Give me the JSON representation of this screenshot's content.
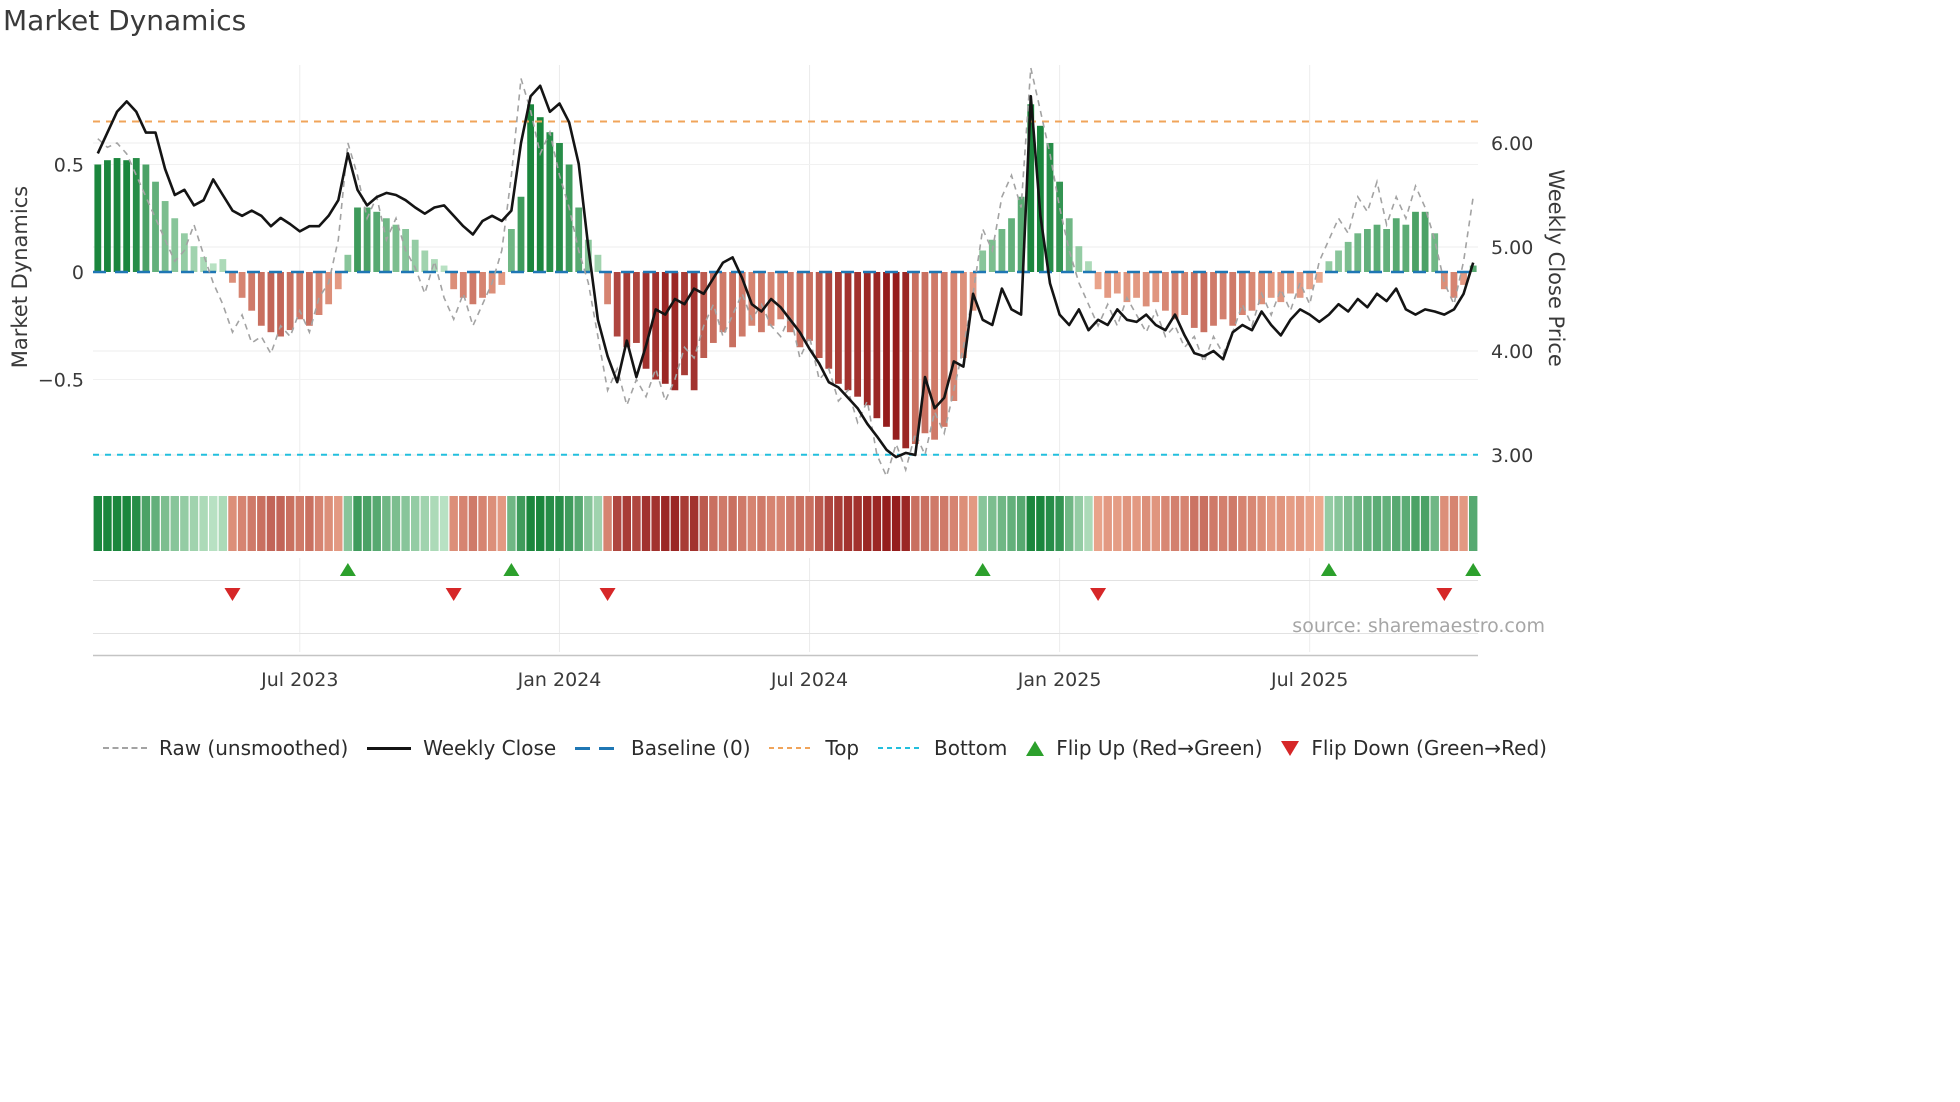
{
  "title": "Market Dynamics",
  "source": "source: sharemaestro.com",
  "axes": {
    "left_label": "Market Dynamics",
    "right_label": "Weekly Close Price",
    "left_ticks": [
      {
        "v": 0.5,
        "label": "0.5"
      },
      {
        "v": 0,
        "label": "0"
      },
      {
        "v": -0.5,
        "label": "−0.5"
      }
    ],
    "right_ticks": [
      {
        "v": 6,
        "label": "6.00"
      },
      {
        "v": 5,
        "label": "5.00"
      },
      {
        "v": 4,
        "label": "4.00"
      },
      {
        "v": 3,
        "label": "3.00"
      }
    ],
    "x_ticks": [
      {
        "i": 21,
        "label": "Jul 2023"
      },
      {
        "i": 48,
        "label": "Jan 2024"
      },
      {
        "i": 74,
        "label": "Jul 2024"
      },
      {
        "i": 100,
        "label": "Jan 2025"
      },
      {
        "i": 126,
        "label": "Jul 2025"
      }
    ]
  },
  "palette": {
    "green_dark": "#0f7f33",
    "green_light": "#c4e8cd",
    "red_dark": "#951d1d",
    "red_light": "#f6b89b",
    "raw_line": "#a3a3a3",
    "close_line": "#141414",
    "baseline": "#1f77b4",
    "top_line": "#f0a45a",
    "bottom_line": "#22bfdd",
    "flip_up": "#2ca02c",
    "flip_down": "#d62728",
    "grid": "#ececec",
    "spine": "#c4c4c4",
    "text": "#3a3a3a"
  },
  "legend": [
    {
      "id": "raw",
      "label": "Raw (unsmoothed)",
      "swatch": "dash",
      "color": "#a3a3a3"
    },
    {
      "id": "weekly-close",
      "label": "Weekly Close",
      "swatch": "solid",
      "color": "#141414"
    },
    {
      "id": "baseline",
      "label": "Baseline (0)",
      "swatch": "longdash",
      "color": "#1f77b4"
    },
    {
      "id": "top",
      "label": "Top",
      "swatch": "dots",
      "color": "#f0a45a"
    },
    {
      "id": "bottom",
      "label": "Bottom",
      "swatch": "dots",
      "color": "#22bfdd"
    },
    {
      "id": "flip-up",
      "label": "Flip Up (Red→Green)",
      "swatch": "tri-up",
      "color": "#2ca02c"
    },
    {
      "id": "flip-down",
      "label": "Flip Down (Green→Red)",
      "swatch": "tri-down",
      "color": "#d62728"
    }
  ],
  "chart_data": {
    "type": "combo",
    "x": {
      "freq": "weekly",
      "n": 144,
      "tick_indices": [
        21,
        48,
        74,
        100,
        126
      ],
      "tick_labels": [
        "Jul 2023",
        "Jan 2024",
        "Jul 2024",
        "Jan 2025",
        "Jul 2025"
      ]
    },
    "axes": {
      "left": {
        "label": "Market Dynamics",
        "ticks": [
          0.5,
          0,
          -0.5
        ],
        "lim": [
          -0.96,
          0.96
        ]
      },
      "right": {
        "label": "Weekly Close Price",
        "ticks": [
          6.0,
          5.0,
          4.0,
          3.0
        ],
        "lim": [
          3.0,
          6.75
        ]
      }
    },
    "reference_lines": [
      {
        "name": "Baseline (0)",
        "axis": "left",
        "value": 0
      },
      {
        "name": "Top",
        "axis": "left",
        "value": 0.7
      },
      {
        "name": "Bottom",
        "axis": "left",
        "value": -0.85
      }
    ],
    "flip_up_indices": [
      26,
      43,
      92,
      128,
      143
    ],
    "flip_down_indices": [
      14,
      37,
      53,
      104,
      140
    ],
    "heatmap": "strip mirrors bar sign and intensity per week",
    "series": [
      {
        "name": "Market Dynamics",
        "type": "bar",
        "axis": "left",
        "values": [
          0.5,
          0.52,
          0.53,
          0.52,
          0.53,
          0.5,
          0.42,
          0.33,
          0.25,
          0.18,
          0.12,
          0.07,
          0.04,
          0.06,
          -0.05,
          -0.12,
          -0.18,
          -0.25,
          -0.28,
          -0.3,
          -0.27,
          -0.22,
          -0.25,
          -0.2,
          -0.15,
          -0.08,
          0.08,
          0.3,
          0.3,
          0.28,
          0.25,
          0.22,
          0.2,
          0.15,
          0.1,
          0.06,
          0.03,
          -0.08,
          -0.12,
          -0.15,
          -0.12,
          -0.1,
          -0.06,
          0.2,
          0.35,
          0.78,
          0.72,
          0.65,
          0.6,
          0.5,
          0.3,
          0.15,
          0.08,
          -0.15,
          -0.3,
          -0.35,
          -0.33,
          -0.45,
          -0.5,
          -0.52,
          -0.55,
          -0.48,
          -0.55,
          -0.4,
          -0.33,
          -0.28,
          -0.35,
          -0.3,
          -0.25,
          -0.28,
          -0.25,
          -0.22,
          -0.28,
          -0.35,
          -0.32,
          -0.4,
          -0.45,
          -0.52,
          -0.55,
          -0.58,
          -0.62,
          -0.68,
          -0.72,
          -0.78,
          -0.82,
          -0.8,
          -0.75,
          -0.78,
          -0.72,
          -0.6,
          -0.4,
          -0.18,
          0.1,
          0.15,
          0.2,
          0.25,
          0.35,
          0.78,
          0.68,
          0.6,
          0.42,
          0.25,
          0.12,
          0.05,
          -0.08,
          -0.12,
          -0.1,
          -0.14,
          -0.12,
          -0.16,
          -0.14,
          -0.18,
          -0.22,
          -0.2,
          -0.26,
          -0.28,
          -0.25,
          -0.22,
          -0.25,
          -0.2,
          -0.18,
          -0.15,
          -0.12,
          -0.14,
          -0.1,
          -0.12,
          -0.08,
          -0.05,
          0.05,
          0.1,
          0.14,
          0.18,
          0.2,
          0.22,
          0.2,
          0.25,
          0.22,
          0.28,
          0.28,
          0.18,
          -0.08,
          -0.12,
          -0.06,
          0.03
        ],
        "intensity": [
          0.95,
          0.95,
          0.95,
          0.95,
          0.9,
          0.75,
          0.65,
          0.55,
          0.5,
          0.45,
          0.4,
          0.35,
          0.3,
          0.35,
          0.45,
          0.5,
          0.55,
          0.6,
          0.65,
          0.65,
          0.6,
          0.55,
          0.6,
          0.5,
          0.45,
          0.4,
          0.5,
          0.8,
          0.75,
          0.7,
          0.6,
          0.55,
          0.5,
          0.45,
          0.4,
          0.35,
          0.3,
          0.45,
          0.5,
          0.55,
          0.5,
          0.45,
          0.4,
          0.6,
          0.8,
          0.95,
          0.95,
          0.9,
          0.9,
          0.8,
          0.7,
          0.5,
          0.4,
          0.5,
          0.8,
          0.85,
          0.8,
          0.9,
          0.9,
          0.95,
          0.95,
          0.85,
          0.9,
          0.7,
          0.6,
          0.55,
          0.6,
          0.55,
          0.5,
          0.55,
          0.5,
          0.5,
          0.55,
          0.6,
          0.6,
          0.7,
          0.8,
          0.85,
          0.9,
          0.9,
          0.95,
          0.95,
          1.0,
          1.0,
          0.95,
          0.6,
          0.6,
          0.55,
          0.55,
          0.5,
          0.45,
          0.4,
          0.5,
          0.55,
          0.6,
          0.65,
          0.7,
          0.95,
          0.95,
          0.9,
          0.85,
          0.6,
          0.45,
          0.35,
          0.35,
          0.4,
          0.38,
          0.42,
          0.4,
          0.45,
          0.42,
          0.48,
          0.52,
          0.5,
          0.58,
          0.6,
          0.55,
          0.52,
          0.55,
          0.5,
          0.48,
          0.45,
          0.4,
          0.42,
          0.38,
          0.4,
          0.35,
          0.32,
          0.45,
          0.5,
          0.55,
          0.6,
          0.65,
          0.68,
          0.65,
          0.7,
          0.68,
          0.75,
          0.75,
          0.6,
          0.45,
          0.5,
          0.4,
          0.7
        ]
      },
      {
        "name": "Raw (unsmoothed)",
        "type": "line",
        "style": "dashed",
        "axis": "left",
        "values": [
          0.62,
          0.58,
          0.6,
          0.55,
          0.45,
          0.35,
          0.25,
          0.15,
          0.05,
          0.1,
          0.22,
          0.08,
          -0.05,
          -0.15,
          -0.28,
          -0.2,
          -0.33,
          -0.3,
          -0.38,
          -0.25,
          -0.3,
          -0.18,
          -0.28,
          -0.12,
          -0.05,
          0.15,
          0.6,
          0.45,
          0.25,
          0.35,
          0.15,
          0.25,
          0.1,
          0.02,
          -0.1,
          0.05,
          -0.12,
          -0.22,
          -0.1,
          -0.25,
          -0.15,
          -0.05,
          0.1,
          0.45,
          0.9,
          0.75,
          0.55,
          0.65,
          0.45,
          0.3,
          0.1,
          -0.05,
          -0.3,
          -0.55,
          -0.45,
          -0.62,
          -0.5,
          -0.58,
          -0.45,
          -0.6,
          -0.5,
          -0.35,
          -0.4,
          -0.25,
          -0.15,
          -0.3,
          -0.2,
          -0.1,
          -0.22,
          -0.15,
          -0.25,
          -0.3,
          -0.2,
          -0.4,
          -0.3,
          -0.5,
          -0.45,
          -0.6,
          -0.55,
          -0.7,
          -0.6,
          -0.85,
          -0.95,
          -0.8,
          -0.92,
          -0.75,
          -0.85,
          -0.65,
          -0.75,
          -0.55,
          -0.35,
          -0.1,
          0.2,
          0.1,
          0.35,
          0.45,
          0.3,
          0.95,
          0.75,
          0.55,
          0.3,
          0.1,
          -0.05,
          -0.15,
          -0.25,
          -0.15,
          -0.25,
          -0.12,
          -0.2,
          -0.28,
          -0.18,
          -0.3,
          -0.25,
          -0.35,
          -0.3,
          -0.42,
          -0.3,
          -0.38,
          -0.28,
          -0.15,
          -0.25,
          -0.1,
          -0.2,
          -0.08,
          -0.18,
          -0.05,
          -0.15,
          0.05,
          0.15,
          0.25,
          0.18,
          0.35,
          0.28,
          0.42,
          0.22,
          0.35,
          0.25,
          0.4,
          0.3,
          0.15,
          -0.05,
          -0.15,
          0.05,
          0.35
        ]
      },
      {
        "name": "Weekly Close",
        "type": "line",
        "axis": "right",
        "values": [
          5.9,
          6.1,
          6.3,
          6.4,
          6.3,
          6.1,
          6.1,
          5.75,
          5.5,
          5.55,
          5.4,
          5.45,
          5.65,
          5.5,
          5.35,
          5.3,
          5.35,
          5.3,
          5.2,
          5.28,
          5.22,
          5.15,
          5.2,
          5.2,
          5.3,
          5.45,
          5.9,
          5.55,
          5.4,
          5.48,
          5.52,
          5.5,
          5.45,
          5.38,
          5.32,
          5.38,
          5.4,
          5.3,
          5.2,
          5.12,
          5.25,
          5.3,
          5.25,
          5.35,
          6.0,
          6.45,
          6.55,
          6.3,
          6.38,
          6.2,
          5.8,
          5.0,
          4.3,
          3.95,
          3.7,
          4.1,
          3.75,
          4.05,
          4.4,
          4.35,
          4.5,
          4.45,
          4.6,
          4.55,
          4.7,
          4.85,
          4.9,
          4.7,
          4.45,
          4.38,
          4.5,
          4.42,
          4.3,
          4.18,
          4.02,
          3.88,
          3.7,
          3.65,
          3.55,
          3.45,
          3.3,
          3.18,
          3.05,
          2.98,
          3.02,
          3.0,
          3.75,
          3.45,
          3.55,
          3.9,
          3.85,
          4.55,
          4.3,
          4.25,
          4.6,
          4.4,
          4.35,
          6.45,
          5.3,
          4.65,
          4.35,
          4.25,
          4.4,
          4.2,
          4.3,
          4.25,
          4.4,
          4.3,
          4.28,
          4.35,
          4.25,
          4.2,
          4.35,
          4.15,
          3.98,
          3.95,
          4.0,
          3.92,
          4.18,
          4.25,
          4.2,
          4.38,
          4.25,
          4.15,
          4.3,
          4.4,
          4.35,
          4.28,
          4.35,
          4.45,
          4.38,
          4.5,
          4.42,
          4.55,
          4.48,
          4.6,
          4.4,
          4.35,
          4.4,
          4.38,
          4.35,
          4.4,
          4.55,
          4.85
        ]
      }
    ]
  }
}
